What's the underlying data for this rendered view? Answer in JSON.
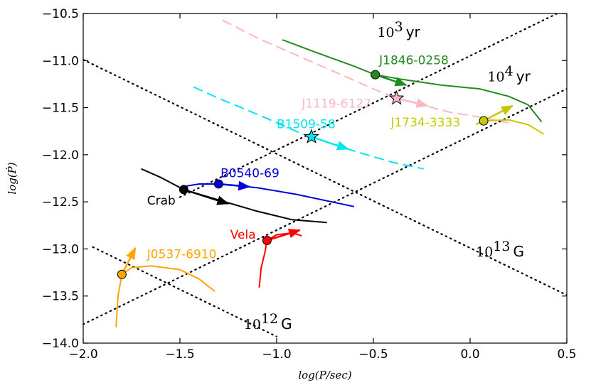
{
  "chart_data": {
    "type": "line",
    "xlabel": "log(P/sec)",
    "ylabel": "log(Ṗ)",
    "xlim": [
      -2.0,
      0.5
    ],
    "ylim": [
      -14.0,
      -10.5
    ],
    "x_ticks": [
      -2.0,
      -1.5,
      -1.0,
      -0.5,
      0.0,
      0.5
    ],
    "x_tick_labels": [
      "−2.0",
      "−1.5",
      "−1.0",
      "−0.5",
      "0.0",
      "0.5"
    ],
    "y_ticks": [
      -14.0,
      -13.5,
      -13.0,
      -12.5,
      -12.0,
      -11.5,
      -11.0,
      -10.5
    ],
    "y_tick_labels": [
      "−14.0",
      "−13.5",
      "−13.0",
      "−12.5",
      "−12.0",
      "−11.5",
      "−11.0",
      "−10.5"
    ],
    "isolines": [
      {
        "name": "age-1e3",
        "kind": "age",
        "exponent": "3",
        "unit": "yr",
        "points": [
          [
            -1.5,
            -12.45
          ],
          [
            0.5,
            -10.45
          ]
        ],
        "label_at": [
          -0.48,
          -10.75
        ]
      },
      {
        "name": "age-1e4",
        "kind": "age",
        "exponent": "4",
        "unit": "yr",
        "points": [
          [
            -2.0,
            -13.8
          ],
          [
            0.5,
            -11.3
          ]
        ],
        "label_at": [
          0.09,
          -11.22
        ]
      },
      {
        "name": "field-1e13",
        "kind": "field",
        "exponent": "13",
        "unit": "G",
        "points": [
          [
            -2.0,
            -10.99
          ],
          [
            0.5,
            -13.49
          ]
        ],
        "label_at": [
          0.03,
          -13.08
        ]
      },
      {
        "name": "field-1e12",
        "kind": "field",
        "exponent": "12",
        "unit": "G",
        "points": [
          [
            -1.95,
            -12.98
          ],
          [
            -1.0,
            -13.93
          ]
        ],
        "label_at": [
          -1.17,
          -13.85
        ]
      }
    ],
    "iso_base": "10",
    "series": [
      {
        "name": "J1846-0258",
        "color": "#228B22",
        "style": "solid",
        "marker": "circle",
        "current": [
          -0.49,
          -11.15
        ],
        "label_at": [
          -0.47,
          -11.04
        ],
        "track": [
          [
            -0.97,
            -10.78
          ],
          [
            -0.8,
            -10.91
          ],
          [
            -0.6,
            -11.06
          ],
          [
            -0.49,
            -11.15
          ],
          [
            -0.35,
            -11.2
          ],
          [
            -0.15,
            -11.26
          ],
          [
            0.05,
            -11.3
          ],
          [
            0.2,
            -11.38
          ],
          [
            0.3,
            -11.47
          ],
          [
            0.37,
            -11.65
          ]
        ],
        "arrow": [
          [
            -0.49,
            -11.15
          ],
          [
            -0.33,
            -11.26
          ]
        ]
      },
      {
        "name": "J1119-6127",
        "color": "#FFB6C1",
        "style": "dashed",
        "marker": "star",
        "current": [
          -0.38,
          -11.4
        ],
        "label_at": [
          -0.87,
          -11.5
        ],
        "track": [
          [
            -1.28,
            -10.57
          ],
          [
            -1.1,
            -10.76
          ],
          [
            -0.9,
            -10.94
          ],
          [
            -0.7,
            -11.12
          ],
          [
            -0.5,
            -11.3
          ],
          [
            -0.38,
            -11.4
          ],
          [
            -0.25,
            -11.47
          ],
          [
            -0.1,
            -11.55
          ],
          [
            0.05,
            -11.6
          ],
          [
            0.2,
            -11.66
          ]
        ],
        "arrow": [
          [
            -0.38,
            -11.4
          ],
          [
            -0.22,
            -11.48
          ]
        ]
      },
      {
        "name": "J1734-3333",
        "color": "#C8C800",
        "style": "solid",
        "marker": "circle",
        "current": [
          0.07,
          -11.64
        ],
        "label_at": [
          -0.41,
          -11.7
        ],
        "track": [
          [
            0.07,
            -11.64
          ],
          [
            0.2,
            -11.63
          ],
          [
            0.3,
            -11.68
          ],
          [
            0.38,
            -11.78
          ]
        ],
        "arrow": [
          [
            0.03,
            -11.68
          ],
          [
            0.22,
            -11.48
          ]
        ]
      },
      {
        "name": "B1509-58",
        "color": "#00E5EE",
        "style": "dashed",
        "marker": "star",
        "current": [
          -0.82,
          -11.81
        ],
        "label_at": [
          -1.0,
          -11.72
        ],
        "track": [
          [
            -1.43,
            -11.28
          ],
          [
            -1.3,
            -11.4
          ],
          [
            -1.1,
            -11.57
          ],
          [
            -0.9,
            -11.75
          ],
          [
            -0.82,
            -11.81
          ],
          [
            -0.6,
            -11.96
          ],
          [
            -0.4,
            -12.08
          ],
          [
            -0.24,
            -12.15
          ]
        ],
        "arrow": [
          [
            -0.82,
            -11.81
          ],
          [
            -0.63,
            -11.94
          ]
        ]
      },
      {
        "name": "B0540-69",
        "color": "#0000DD",
        "style": "solid",
        "marker": "circle",
        "current": [
          -1.3,
          -12.31
        ],
        "label_at": [
          -1.29,
          -12.24
        ],
        "track": [
          [
            -1.49,
            -12.34
          ],
          [
            -1.4,
            -12.31
          ],
          [
            -1.3,
            -12.31
          ],
          [
            -1.1,
            -12.35
          ],
          [
            -0.9,
            -12.42
          ],
          [
            -0.6,
            -12.55
          ]
        ],
        "arrow": [
          [
            -1.3,
            -12.31
          ],
          [
            -1.14,
            -12.34
          ]
        ]
      },
      {
        "name": "Crab",
        "color": "#000000",
        "style": "solid",
        "marker": "circle",
        "current": [
          -1.48,
          -12.37
        ],
        "label_at": [
          -1.67,
          -12.53
        ],
        "track": [
          [
            -1.7,
            -12.15
          ],
          [
            -1.6,
            -12.24
          ],
          [
            -1.48,
            -12.37
          ],
          [
            -1.3,
            -12.48
          ],
          [
            -1.1,
            -12.6
          ],
          [
            -0.92,
            -12.69
          ],
          [
            -0.74,
            -12.72
          ]
        ],
        "arrow": [
          [
            -1.48,
            -12.37
          ],
          [
            -1.25,
            -12.52
          ]
        ]
      },
      {
        "name": "Vela",
        "color": "#FF0000",
        "style": "solid",
        "marker": "circle",
        "current": [
          -1.05,
          -12.91
        ],
        "label_at": [
          -1.24,
          -12.89
        ],
        "track": [
          [
            -1.09,
            -13.41
          ],
          [
            -1.08,
            -13.2
          ],
          [
            -1.06,
            -13.03
          ],
          [
            -1.05,
            -12.91
          ],
          [
            -1.0,
            -12.85
          ],
          [
            -0.92,
            -12.83
          ],
          [
            -0.87,
            -12.86
          ]
        ],
        "arrow": [
          [
            -1.05,
            -12.91
          ],
          [
            -0.88,
            -12.8
          ]
        ]
      },
      {
        "name": "J0537-6910",
        "color": "#FFA500",
        "style": "solid",
        "marker": "circle",
        "current": [
          -1.8,
          -13.27
        ],
        "label_at": [
          -1.67,
          -13.1
        ],
        "track": [
          [
            -1.83,
            -13.83
          ],
          [
            -1.82,
            -13.5
          ],
          [
            -1.8,
            -13.27
          ],
          [
            -1.75,
            -13.2
          ],
          [
            -1.65,
            -13.18
          ],
          [
            -1.5,
            -13.22
          ],
          [
            -1.4,
            -13.32
          ],
          [
            -1.32,
            -13.45
          ]
        ],
        "arrow": [
          [
            -1.8,
            -13.27
          ],
          [
            -1.73,
            -12.99
          ]
        ]
      }
    ]
  }
}
